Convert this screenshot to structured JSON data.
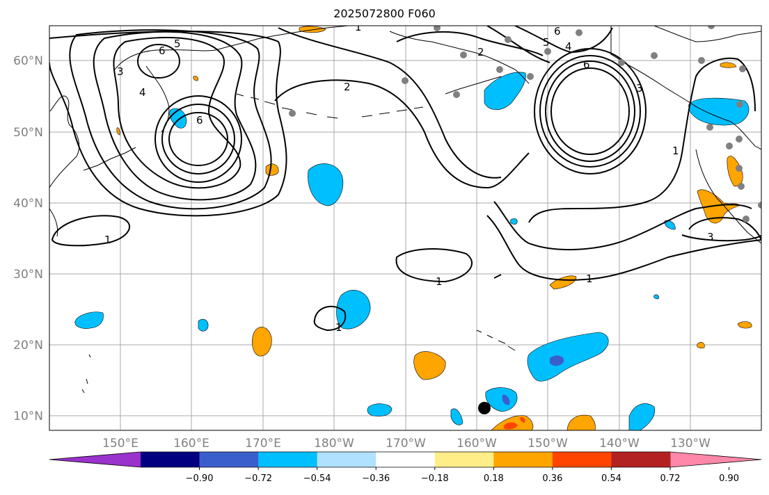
{
  "title": "2025072800 F060",
  "lat_labels": [
    "60°N",
    "50°N",
    "40°N",
    "30°N",
    "20°N",
    "10°N"
  ],
  "lon_labels": [
    "150°E",
    "160°E",
    "170°E",
    "180°W",
    "170°W",
    "160°W",
    "150°W",
    "140°W",
    "130°W"
  ],
  "colorbar": {
    "ticks": [
      "−0.90",
      "−0.72",
      "−0.54",
      "−0.36",
      "−0.18",
      "0.18",
      "0.36",
      "0.54",
      "0.72",
      "0.90"
    ],
    "colors": [
      "#9933cc",
      "#000080",
      "#3a5fcd",
      "#00bfff",
      "#b0e2ff",
      "#ffffff",
      "#ffee88",
      "#ffa500",
      "#ff4500",
      "#b22222",
      "#ff88aa"
    ]
  },
  "contour_labels": {
    "c1": "1",
    "c2": "2",
    "c3": "3",
    "c4": "4",
    "c5": "5",
    "c6": "6"
  },
  "colors": {
    "positive": "#ffa500",
    "negative": "#00bfff",
    "strong_negative": "#3a5fcd",
    "station": "#808080"
  }
}
